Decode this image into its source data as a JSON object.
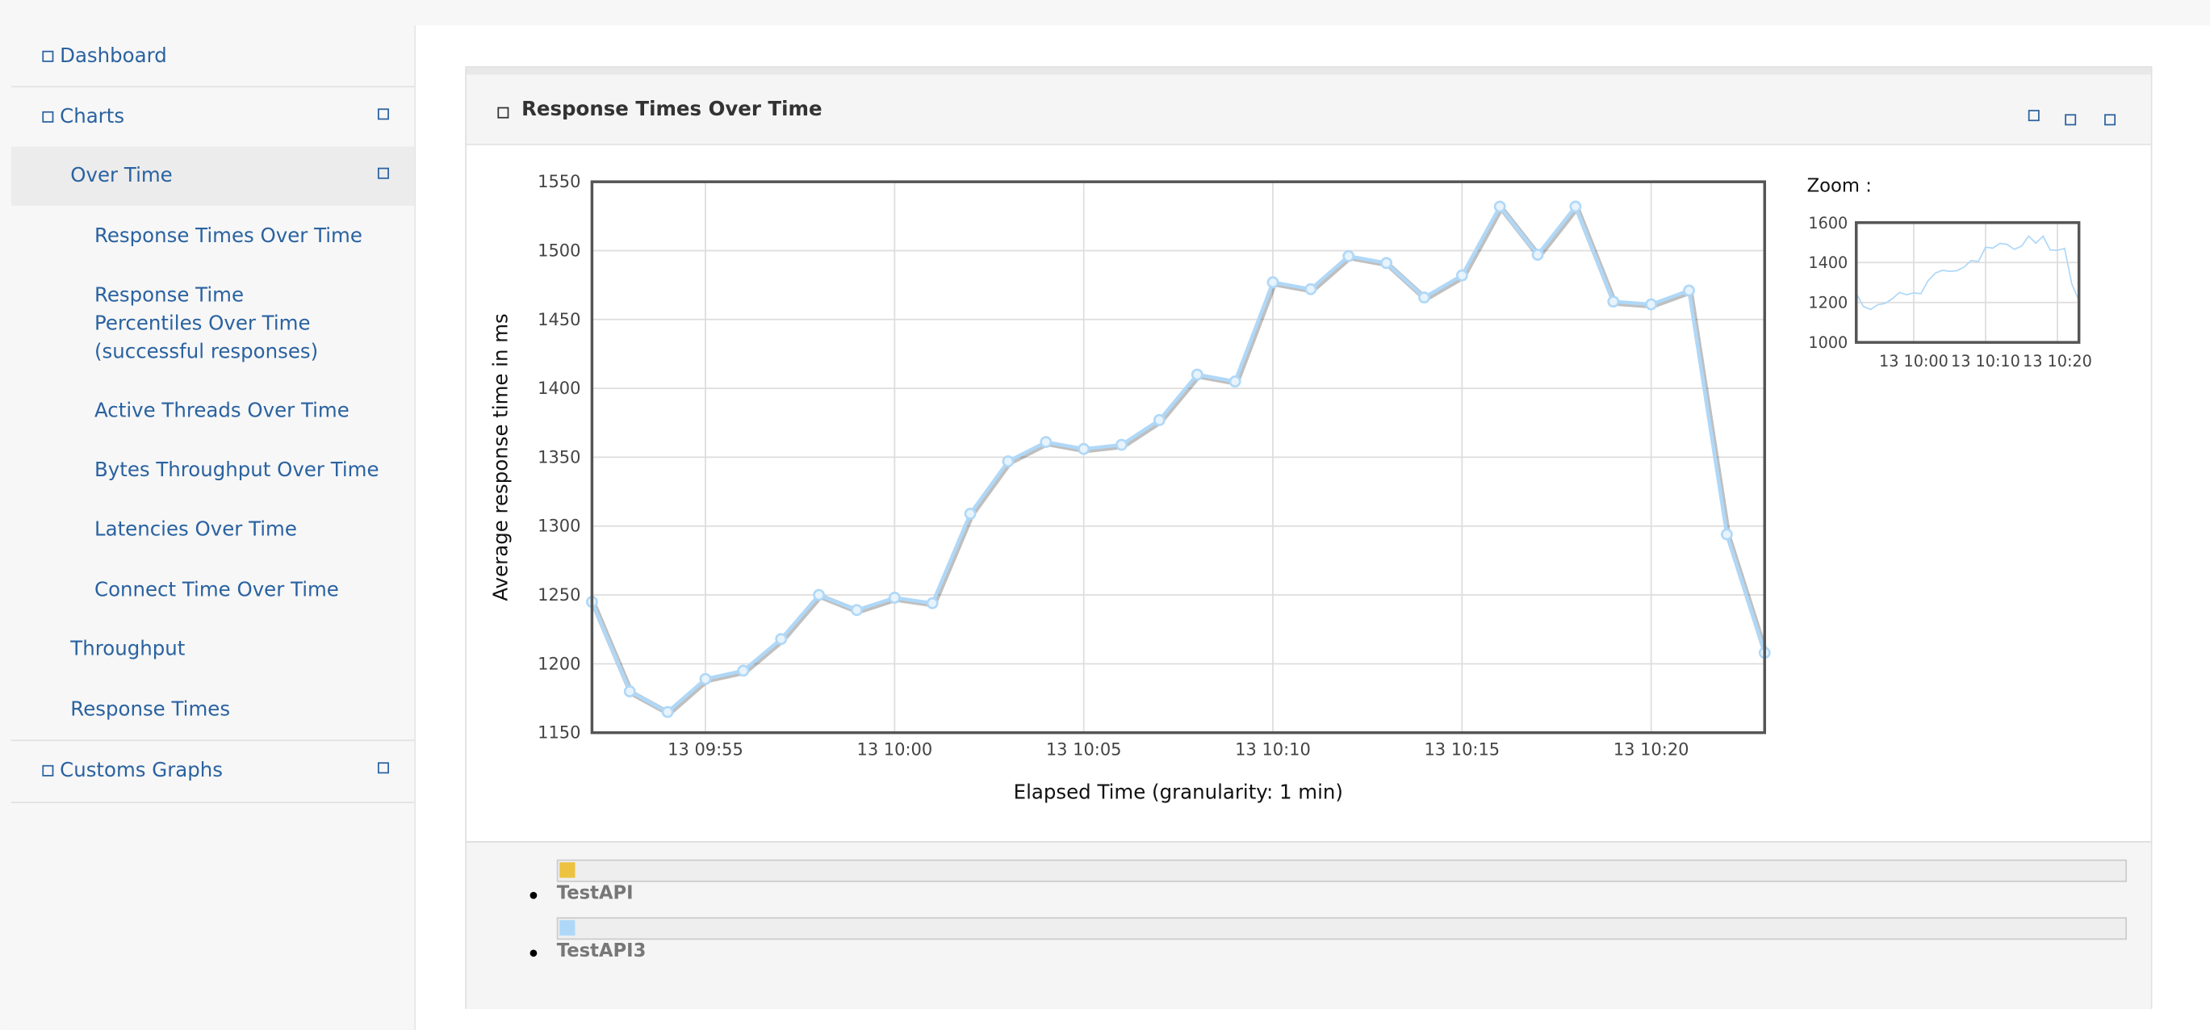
{
  "sidebar": {
    "items": [
      "Dashboard",
      "Charts",
      "Over Time",
      "Response Times Over Time",
      "Response Time Percentiles Over Time (successful responses)",
      "Active Threads Over Time",
      "Bytes Throughput Over Time",
      "Latencies Over Time",
      "Connect Time Over Time",
      "Throughput",
      "Response Times",
      "Customs Graphs"
    ]
  },
  "panel": {
    "title": "Response Times Over Time"
  },
  "chart_data": {
    "type": "line",
    "xlabel": "Elapsed Time (granularity: 1 min)",
    "ylabel": "Average response time in ms",
    "x": [
      "13 09:52",
      "13 09:53",
      "13 09:54",
      "13 09:55",
      "13 09:56",
      "13 09:57",
      "13 09:58",
      "13 09:59",
      "13 10:00",
      "13 10:01",
      "13 10:02",
      "13 10:03",
      "13 10:04",
      "13 10:05",
      "13 10:06",
      "13 10:07",
      "13 10:08",
      "13 10:09",
      "13 10:10",
      "13 10:11",
      "13 10:12",
      "13 10:13",
      "13 10:14",
      "13 10:15",
      "13 10:16",
      "13 10:17",
      "13 10:18",
      "13 10:19",
      "13 10:20",
      "13 10:21",
      "13 10:22",
      "13 10:23"
    ],
    "series": [
      {
        "name": "TestAPI",
        "color": "#edc240",
        "visible": false
      },
      {
        "name": "TestAPI3",
        "color": "#afd8f8",
        "values": [
          1245,
          1180,
          1165,
          1189,
          1195,
          1218,
          1250,
          1239,
          1248,
          1244,
          1309,
          1347,
          1361,
          1356,
          1359,
          1377,
          1410,
          1405,
          1477,
          1472,
          1496,
          1491,
          1466,
          1482,
          1532,
          1497,
          1532,
          1463,
          1461,
          1471,
          1294,
          1208
        ]
      }
    ],
    "xlim": [
      "13 09:52",
      "13 10:23"
    ],
    "xticks": [
      "13 09:55",
      "13 10:00",
      "13 10:05",
      "13 10:10",
      "13 10:15",
      "13 10:20"
    ],
    "ylim": [
      1150,
      1550
    ],
    "yticks": [
      1150,
      1200,
      1250,
      1300,
      1350,
      1400,
      1450,
      1500,
      1550
    ],
    "grid": true,
    "zoom": {
      "label": "Zoom :",
      "xlim": [
        "13 09:52",
        "13 10:23"
      ],
      "xticks": [
        "13 10:00",
        "13 10:10",
        "13 10:20"
      ],
      "ylim": [
        1000,
        1600
      ],
      "yticks": [
        1000,
        1200,
        1400,
        1600
      ]
    }
  }
}
